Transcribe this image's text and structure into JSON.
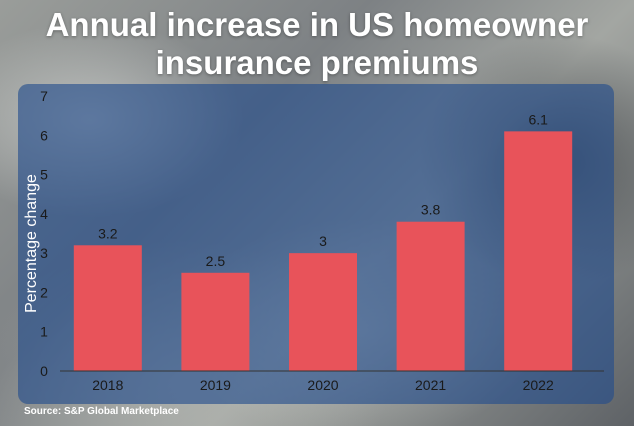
{
  "title_line1": "Annual increase in US homeowner",
  "title_line2": "insurance premiums",
  "source": "Source: S&P Global Marketplace",
  "colors": {
    "bar": "#e8535a",
    "panel": "#224c8c",
    "axis": "#333333"
  },
  "chart_data": {
    "type": "bar",
    "title": "Annual increase in US homeowner insurance premiums",
    "xlabel": "",
    "ylabel": "Percentage change",
    "categories": [
      "2018",
      "2019",
      "2020",
      "2021",
      "2022"
    ],
    "values": [
      3.2,
      2.5,
      3,
      3.8,
      6.1
    ],
    "data_labels": [
      "3.2",
      "2.5",
      "3",
      "3.8",
      "6.1"
    ],
    "yticks": [
      0,
      1,
      2,
      3,
      4,
      5,
      6,
      7
    ],
    "ylim": [
      0,
      7
    ],
    "grid": false,
    "legend": "none"
  }
}
